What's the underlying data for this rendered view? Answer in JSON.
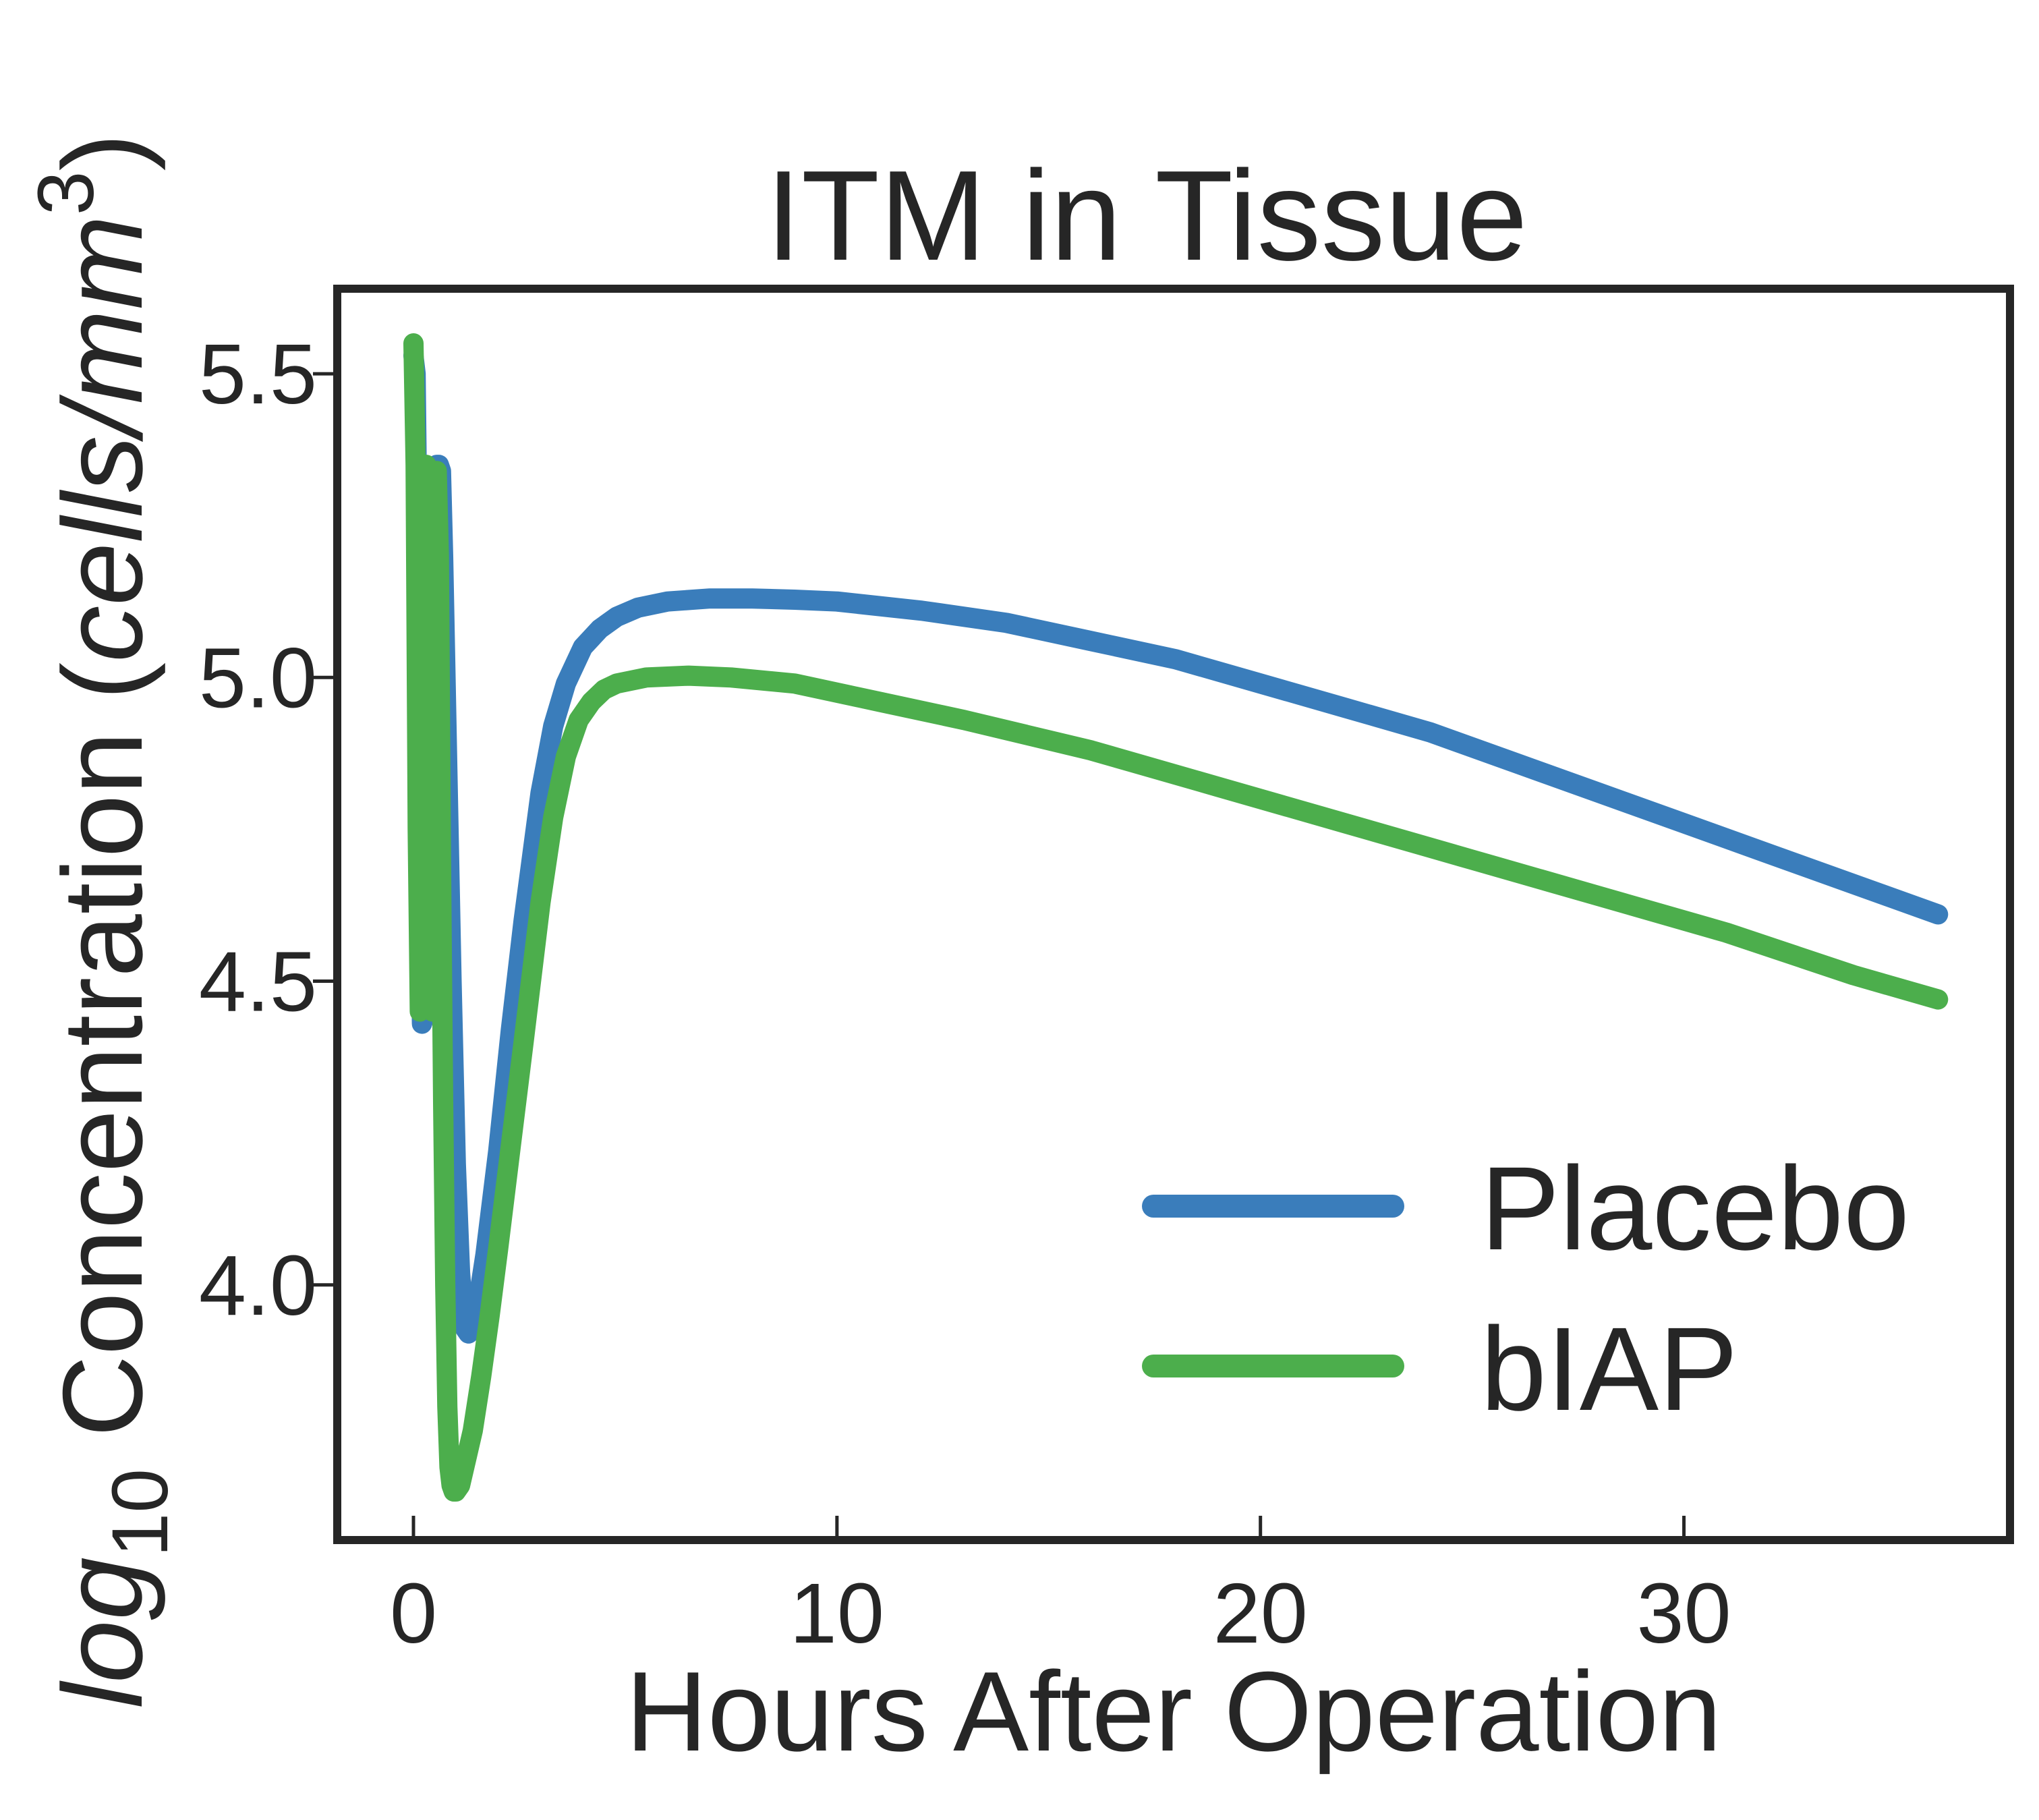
{
  "chart_data": {
    "type": "line",
    "title": "ITM in Tissue",
    "xlabel": "Hours After Operation",
    "ylabel": {
      "prefix": "log",
      "subscript": "10",
      "mid": " Concentration (",
      "unit": "cells/mm",
      "superscript": "3",
      "suffix": ")"
    },
    "xlim": [
      -1.8,
      37.7
    ],
    "ylim": [
      3.58,
      5.64
    ],
    "xticks": [
      0,
      10,
      20,
      30
    ],
    "yticks": [
      4.0,
      4.5,
      5.0,
      5.5
    ],
    "xtick_labels": [
      "0",
      "10",
      "20",
      "30"
    ],
    "ytick_labels": [
      "4.0",
      "4.5",
      "5.0",
      "5.5"
    ],
    "legend": {
      "position": "lower-right",
      "entries": [
        "Placebo",
        "bIAP"
      ]
    },
    "grid": false,
    "colors": {
      "Placebo": "#3a7dbb",
      "bIAP": "#4cae4c",
      "axes": "#262626"
    },
    "series": [
      {
        "name": "Placebo",
        "color": "#3a7dbb",
        "x": [
          0.0,
          0.05,
          0.1,
          0.15,
          0.2,
          0.3,
          0.4,
          0.45,
          0.5,
          0.55,
          0.6,
          0.65,
          0.7,
          0.8,
          0.9,
          1.0,
          1.1,
          1.2,
          1.3,
          1.5,
          1.7,
          2.0,
          2.3,
          2.6,
          3.0,
          3.3,
          3.6,
          4.0,
          4.4,
          4.8,
          5.3,
          6.0,
          7.0,
          8.0,
          9.0,
          10.0,
          12.0,
          14.0,
          16.0,
          18.0,
          20.0,
          22.0,
          24.0,
          26.0,
          28.0,
          30.0,
          32.0,
          34.0,
          36.0
        ],
        "y": [
          5.53,
          5.5,
          5.2,
          4.65,
          4.43,
          4.45,
          4.62,
          5.05,
          5.33,
          5.35,
          5.35,
          5.34,
          5.2,
          4.85,
          4.5,
          4.2,
          4.02,
          3.93,
          3.92,
          3.96,
          4.05,
          4.22,
          4.42,
          4.6,
          4.81,
          4.92,
          4.99,
          5.05,
          5.08,
          5.1,
          5.115,
          5.125,
          5.13,
          5.13,
          5.128,
          5.125,
          5.11,
          5.09,
          5.06,
          5.03,
          4.99,
          4.95,
          4.91,
          4.86,
          4.81,
          4.76,
          4.71,
          4.66,
          4.61
        ]
      },
      {
        "name": "bIAP",
        "color": "#4cae4c",
        "x": [
          0.0,
          0.05,
          0.1,
          0.15,
          0.2,
          0.25,
          0.3,
          0.35,
          0.4,
          0.45,
          0.5,
          0.55,
          0.6,
          0.65,
          0.7,
          0.75,
          0.8,
          0.85,
          0.9,
          0.95,
          1.0,
          1.1,
          1.2,
          1.4,
          1.6,
          1.8,
          2.0,
          2.3,
          2.6,
          3.0,
          3.3,
          3.6,
          3.9,
          4.2,
          4.5,
          4.8,
          5.5,
          6.5,
          7.5,
          9.0,
          11.0,
          13.0,
          16.0,
          19.0,
          22.0,
          25.0,
          28.0,
          31.0,
          34.0,
          36.0
        ],
        "y": [
          5.55,
          5.35,
          4.75,
          4.45,
          4.6,
          5.25,
          5.35,
          5.3,
          4.75,
          4.45,
          5.15,
          5.34,
          5.2,
          4.7,
          4.3,
          4.0,
          3.8,
          3.7,
          3.67,
          3.66,
          3.66,
          3.67,
          3.7,
          3.76,
          3.85,
          3.95,
          4.06,
          4.23,
          4.4,
          4.63,
          4.77,
          4.87,
          4.93,
          4.96,
          4.98,
          4.99,
          5.0,
          5.003,
          5.0,
          4.99,
          4.96,
          4.93,
          4.88,
          4.82,
          4.76,
          4.7,
          4.64,
          4.58,
          4.51,
          4.47
        ]
      }
    ]
  }
}
